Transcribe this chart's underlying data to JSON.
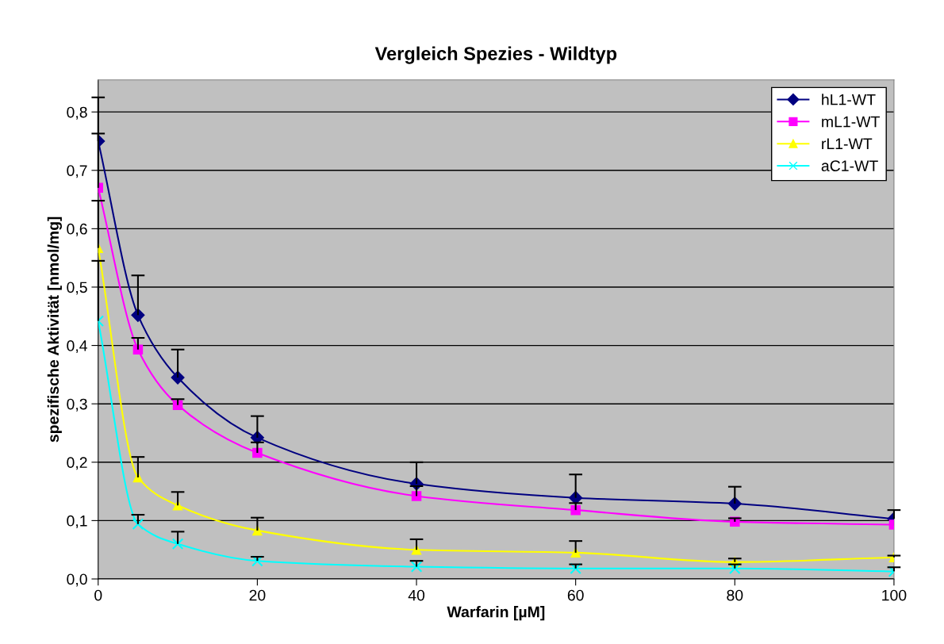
{
  "chart_data": {
    "type": "line",
    "title": "Vergleich Spezies - Wildtyp",
    "xlabel": "Warfarin [µM]",
    "ylabel": "spezifische Aktivität [nmol/mg]",
    "x": [
      0,
      5,
      10,
      20,
      40,
      60,
      80,
      100
    ],
    "xlim": [
      0,
      100
    ],
    "xticks": [
      0,
      20,
      40,
      60,
      80,
      100
    ],
    "ylim": [
      0,
      0.855
    ],
    "yticks": [
      {
        "value": 0,
        "label": "0,0"
      },
      {
        "value": 0.1,
        "label": "0,1"
      },
      {
        "value": 0.2,
        "label": "0,2"
      },
      {
        "value": 0.3,
        "label": "0,3"
      },
      {
        "value": 0.4,
        "label": "0,4"
      },
      {
        "value": 0.5,
        "label": "0,5"
      },
      {
        "value": 0.6,
        "label": "0,6"
      },
      {
        "value": 0.7,
        "label": "0,7"
      },
      {
        "value": 0.8,
        "label": "0,8"
      }
    ],
    "grid": "y",
    "legend": "top right",
    "series": [
      {
        "name": "hL1-WT",
        "color": "#000080",
        "marker": "diamond",
        "values": [
          0.75,
          0.452,
          0.345,
          0.242,
          0.163,
          0.139,
          0.129,
          0.103
        ],
        "errors": [
          [
            0.75,
            0.825
          ],
          [
            0.452,
            0.52
          ],
          [
            0.345,
            0.393
          ],
          [
            0.242,
            0.279
          ],
          [
            0.163,
            0.2
          ],
          [
            0.139,
            0.179
          ],
          [
            0.129,
            0.158
          ],
          [
            0.103,
            0.118
          ]
        ]
      },
      {
        "name": "mL1-WT",
        "color": "#ff00ff",
        "marker": "square",
        "values": [
          0.67,
          0.393,
          0.298,
          0.216,
          0.142,
          0.118,
          0.098,
          0.093
        ],
        "errors": [
          [
            0.67,
            0.763
          ],
          [
            0.393,
            0.413
          ],
          [
            0.298,
            0.308
          ],
          [
            0.216,
            0.234
          ],
          [
            0.142,
            0.159
          ],
          [
            0.118,
            0.13
          ],
          [
            0.098,
            0.104
          ],
          null
        ]
      },
      {
        "name": "rL1-WT",
        "color": "#ffff00",
        "marker": "triangle",
        "values": [
          0.567,
          0.174,
          0.126,
          0.083,
          0.05,
          0.045,
          0.029,
          0.037
        ],
        "errors": [
          [
            0.567,
            0.648
          ],
          [
            0.174,
            0.209
          ],
          [
            0.126,
            0.149
          ],
          [
            0.083,
            0.105
          ],
          [
            0.05,
            0.068
          ],
          [
            0.045,
            0.065
          ],
          [
            0.029,
            0.035
          ],
          [
            0.037,
            0.04
          ]
        ]
      },
      {
        "name": "aC1-WT",
        "color": "#00ffff",
        "marker": "cross",
        "values": [
          0.442,
          0.094,
          0.06,
          0.031,
          0.021,
          0.018,
          0.018,
          0.013
        ],
        "errors": [
          [
            0.442,
            0.545
          ],
          [
            0.094,
            0.11
          ],
          [
            0.06,
            0.081
          ],
          [
            0.031,
            0.038
          ],
          [
            0.021,
            0.031
          ],
          [
            0.018,
            0.025
          ],
          [
            0.018,
            0.025
          ],
          [
            0.013,
            0.02
          ]
        ]
      }
    ]
  }
}
